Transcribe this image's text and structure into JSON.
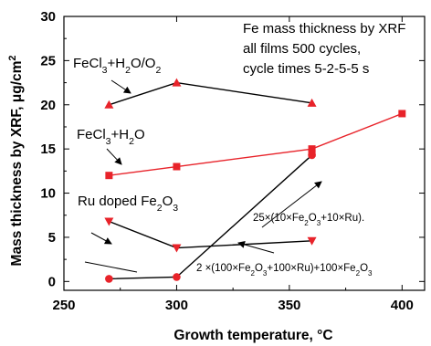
{
  "chart_data": {
    "type": "scatter",
    "xlabel": "Growth temperature, °C",
    "ylabel_parts": {
      "pre": "Mass thickness by XRF, μg/cm",
      "sup": "2"
    },
    "xlim": [
      250,
      410
    ],
    "ylim": [
      -1,
      30
    ],
    "xticks": [
      250,
      300,
      350,
      400
    ],
    "yticks": [
      0,
      5,
      10,
      15,
      20,
      25,
      30
    ],
    "grid": false,
    "info_lines": [
      "Fe mass thickness by XRF",
      "all films 500 cycles,",
      "cycle times 5-2-5-5 s"
    ],
    "series": [
      {
        "label_parts": [
          {
            "t": "FeCl"
          },
          {
            "t": "3",
            "sub": true
          },
          {
            "t": "+H"
          },
          {
            "t": "2",
            "sub": true
          },
          {
            "t": "O/O"
          },
          {
            "t": "2",
            "sub": true
          }
        ],
        "marker": "triangle-up",
        "color": "#e8232a",
        "line_color": "#000000",
        "x": [
          270,
          300,
          360
        ],
        "y": [
          20,
          22.5,
          20.2
        ]
      },
      {
        "label_parts": [
          {
            "t": "FeCl"
          },
          {
            "t": "3",
            "sub": true
          },
          {
            "t": "+H"
          },
          {
            "t": "2",
            "sub": true
          },
          {
            "t": "O"
          }
        ],
        "marker": "square",
        "color": "#e8232a",
        "line_color": "#e8232a",
        "x": [
          270,
          300,
          360,
          400
        ],
        "y": [
          12,
          13,
          15,
          19
        ]
      },
      {
        "label_parts": [
          {
            "t": "Ru doped Fe"
          },
          {
            "t": "2",
            "sub": true
          },
          {
            "t": "O"
          },
          {
            "t": "3",
            "sub": true
          }
        ],
        "marker": "triangle-down",
        "color": "#e8232a",
        "line_color": "#000000",
        "x": [
          270,
          300,
          360
        ],
        "y": [
          6.8,
          3.8,
          4.6
        ]
      },
      {
        "label_parts": [
          {
            "t": "2 ×(100×Fe"
          },
          {
            "t": "2",
            "sub": true
          },
          {
            "t": "O"
          },
          {
            "t": "3",
            "sub": true
          },
          {
            "t": "+100×Ru)+100×Fe"
          },
          {
            "t": "2",
            "sub": true
          },
          {
            "t": "O"
          },
          {
            "t": "3",
            "sub": true
          }
        ],
        "marker": "circle",
        "color": "#e8232a",
        "line_color": "#000000",
        "x": [
          270,
          300,
          360
        ],
        "y": [
          0.3,
          0.5,
          14.3
        ]
      }
    ],
    "extra_points": [
      {
        "marker": "square",
        "color": "#e8232a",
        "x": 360,
        "y": 14.5
      }
    ],
    "extra_labels": [
      {
        "label_parts": [
          {
            "t": "25×(10×Fe"
          },
          {
            "t": "2",
            "sub": true
          },
          {
            "t": "O"
          },
          {
            "t": "3",
            "sub": true
          },
          {
            "t": "+10×Ru)."
          }
        ]
      }
    ]
  }
}
